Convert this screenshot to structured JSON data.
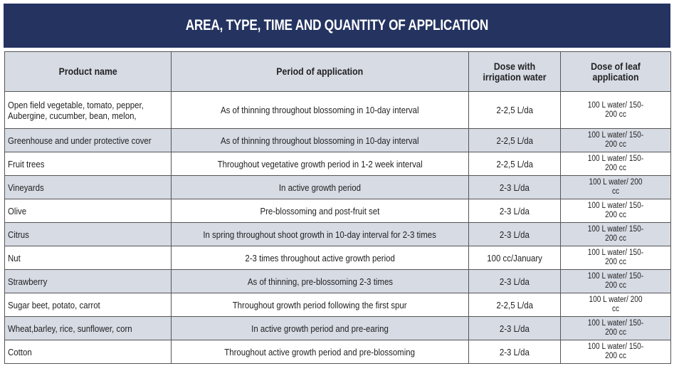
{
  "title": "AREA, TYPE, TIME AND QUANTITY OF APPLICATION",
  "columns": [
    "Product name",
    "Period of application",
    "Dose with irrigation water",
    "Dose of leaf application"
  ],
  "rows": [
    {
      "product": "Open field vegetable, tomato, pepper, Aubergine, cucumber, bean, melon,",
      "period": "As of thinning throughout blossoming in 10-day interval",
      "irrigation": "2-2,5 L/da",
      "leaf": "100 L water/ 150-200 cc"
    },
    {
      "product": "Greenhouse and under protective cover",
      "period": "As of thinning throughout blossoming in 10-day interval",
      "irrigation": "2-2,5 L/da",
      "leaf": "100 L water/ 150-200 cc"
    },
    {
      "product": "Fruit trees",
      "period": "Throughout vegetative growth period in 1-2 week interval",
      "irrigation": "2-2,5 L/da",
      "leaf": "100 L water/ 150-200 cc"
    },
    {
      "product": "Vineyards",
      "period": "In active growth period",
      "irrigation": "2-3 L/da",
      "leaf": "100 L water/ 200 cc"
    },
    {
      "product": "Olive",
      "period": "Pre-blossoming and post-fruit set",
      "irrigation": "2-3 L/da",
      "leaf": "100 L water/ 150-200 cc"
    },
    {
      "product": "Citrus",
      "period": "In spring throughout shoot growth in 10-day interval for 2-3 times",
      "irrigation": "2-3 L/da",
      "leaf": "100 L water/ 150-200 cc"
    },
    {
      "product": "Nut",
      "period": "2-3 times throughout active growth period",
      "irrigation": "100 cc/January",
      "leaf": "100 L water/ 150-200 cc"
    },
    {
      "product": "Strawberry",
      "period": "As of thinning, pre-blossoming 2-3 times",
      "irrigation": "2-3 L/da",
      "leaf": "100 L water/ 150-200 cc"
    },
    {
      "product": "Sugar beet, potato, carrot",
      "period": "Throughout growth period following the first spur",
      "irrigation": "2-2,5 L/da",
      "leaf": "100 L water/ 200 cc"
    },
    {
      "product": "Wheat,barley, rice, sunflower, corn",
      "period": "In active growth period and pre-earing",
      "irrigation": "2-3 L/da",
      "leaf": "100 L water/ 150-200 cc"
    },
    {
      "product": "Cotton",
      "period": "Throughout active growth period and pre-blossoming",
      "irrigation": "2-3 L/da",
      "leaf": "100 L water/ 150-200 cc"
    }
  ]
}
